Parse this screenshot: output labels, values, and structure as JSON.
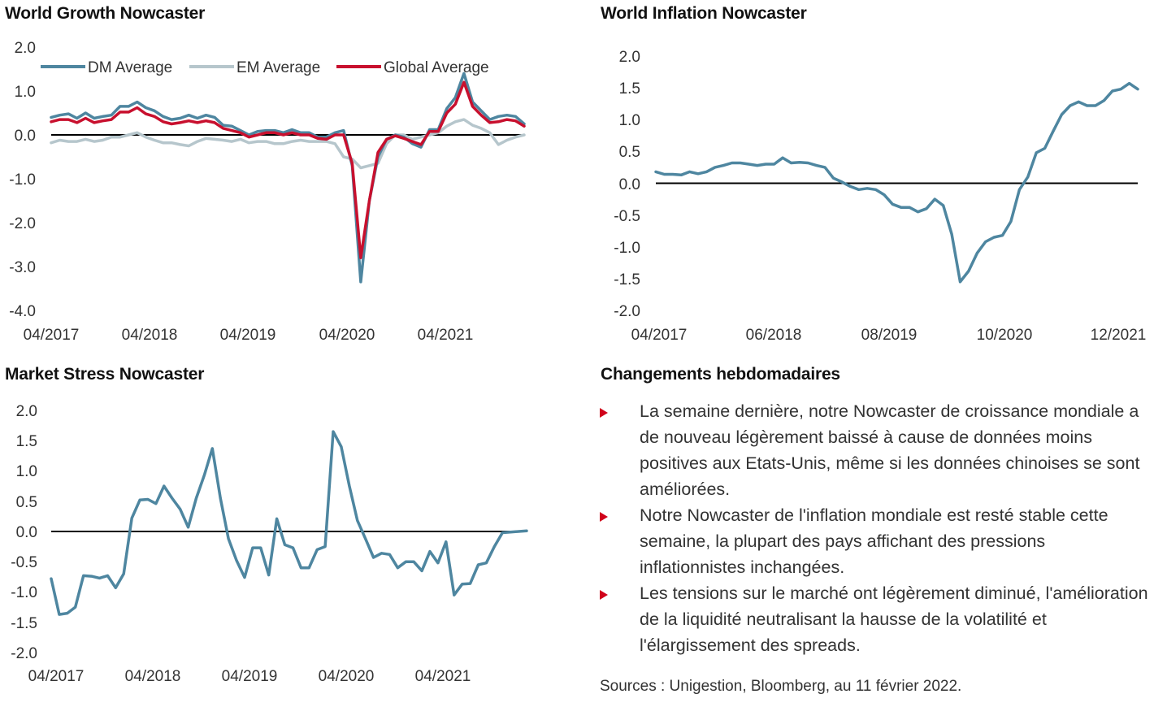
{
  "panels": {
    "growth_title": "World Growth Nowcaster",
    "inflation_title": "World Inflation Nowcaster",
    "stress_title": "Market Stress Nowcaster",
    "weekly_title": "Changements hebdomadaires"
  },
  "commentary": {
    "bullets": [
      "La semaine dernière, notre Nowcaster de croissance mondiale a de nouveau légèrement baissé à cause de données moins positives aux Etats-Unis, même si les données chinoises se sont améliorées.",
      "Notre Nowcaster de l'inflation mondiale est resté stable cette semaine, la plupart des pays affichant des pressions inflationnistes inchangées.",
      "Les tensions sur le marché ont légèrement diminué, l'amélioration de la liquidité neutralisant la hausse de la volatilité et l'élargissement des spreads."
    ],
    "sources": "Sources : Unigestion, Bloomberg, au 11 février 2022."
  },
  "colors": {
    "dm": "#4e86a0",
    "em": "#b6c6cc",
    "global": "#c8102e",
    "bullet": "#d0021b",
    "zero_line": "#000000"
  },
  "chart_data": [
    {
      "type": "line",
      "title": "World Growth Nowcaster",
      "x_start": "2017-04",
      "x_end": "2022-01",
      "xticks": [
        "04/2017",
        "04/2018",
        "04/2019",
        "04/2020",
        "04/2021"
      ],
      "yticks": [
        "2.0",
        "1.0",
        "0.0",
        "-1.0",
        "-2.0",
        "-3.0",
        "-4.0"
      ],
      "ylim": [
        -4,
        2
      ],
      "legend": "top",
      "series": [
        {
          "name": "DM Average",
          "color": "#4e86a0",
          "values": [
            0.4,
            0.45,
            0.48,
            0.38,
            0.5,
            0.38,
            0.42,
            0.45,
            0.65,
            0.65,
            0.75,
            0.62,
            0.55,
            0.42,
            0.35,
            0.38,
            0.45,
            0.38,
            0.45,
            0.4,
            0.22,
            0.2,
            0.1,
            0.0,
            0.08,
            0.1,
            0.1,
            0.05,
            0.12,
            0.05,
            0.05,
            -0.05,
            -0.05,
            0.05,
            0.1,
            -0.7,
            -3.35,
            -1.5,
            -0.5,
            -0.1,
            0.0,
            -0.05,
            -0.2,
            -0.28,
            0.12,
            0.12,
            0.6,
            0.85,
            1.4,
            0.75,
            0.55,
            0.35,
            0.42,
            0.45,
            0.42,
            0.25
          ]
        },
        {
          "name": "EM Average",
          "color": "#b6c6cc",
          "values": [
            -0.18,
            -0.12,
            -0.15,
            -0.15,
            -0.1,
            -0.15,
            -0.12,
            -0.05,
            -0.05,
            0.0,
            0.05,
            -0.05,
            -0.12,
            -0.18,
            -0.18,
            -0.22,
            -0.25,
            -0.15,
            -0.08,
            -0.1,
            -0.12,
            -0.15,
            -0.1,
            -0.18,
            -0.15,
            -0.15,
            -0.2,
            -0.2,
            -0.15,
            -0.12,
            -0.15,
            -0.15,
            -0.15,
            -0.2,
            -0.5,
            -0.55,
            -0.75,
            -0.7,
            -0.65,
            -0.2,
            0.0,
            0.0,
            -0.1,
            -0.05,
            0.0,
            0.05,
            0.2,
            0.3,
            0.35,
            0.22,
            0.15,
            0.05,
            -0.22,
            -0.12,
            -0.05,
            0.0
          ]
        },
        {
          "name": "Global Average",
          "color": "#c8102e",
          "values": [
            0.3,
            0.35,
            0.35,
            0.28,
            0.38,
            0.28,
            0.32,
            0.35,
            0.52,
            0.52,
            0.62,
            0.48,
            0.42,
            0.3,
            0.25,
            0.28,
            0.32,
            0.28,
            0.32,
            0.28,
            0.15,
            0.1,
            0.05,
            -0.05,
            0.0,
            0.05,
            0.05,
            0.0,
            0.05,
            0.0,
            0.0,
            -0.08,
            -0.1,
            0.0,
            0.0,
            -0.65,
            -2.8,
            -1.5,
            -0.4,
            -0.1,
            -0.02,
            -0.08,
            -0.15,
            -0.22,
            0.08,
            0.08,
            0.5,
            0.7,
            1.2,
            0.65,
            0.45,
            0.28,
            0.3,
            0.35,
            0.32,
            0.2
          ]
        }
      ]
    },
    {
      "type": "line",
      "title": "World Inflation Nowcaster",
      "x_start": "2017-04",
      "x_end": "2021-12",
      "xticks": [
        "04/2017",
        "06/2018",
        "08/2019",
        "10/2020",
        "12/2021"
      ],
      "yticks": [
        "2.0",
        "1.5",
        "1.0",
        "0.5",
        "0.0",
        "-0.5",
        "-1.0",
        "-1.5",
        "-2.0"
      ],
      "ylim": [
        -2,
        2
      ],
      "series": [
        {
          "color": "#4e86a0",
          "values": [
            0.18,
            0.14,
            0.14,
            0.13,
            0.18,
            0.15,
            0.18,
            0.25,
            0.28,
            0.32,
            0.32,
            0.3,
            0.28,
            0.3,
            0.3,
            0.4,
            0.32,
            0.33,
            0.32,
            0.28,
            0.25,
            0.08,
            0.02,
            -0.05,
            -0.1,
            -0.08,
            -0.1,
            -0.18,
            -0.33,
            -0.38,
            -0.38,
            -0.45,
            -0.4,
            -0.25,
            -0.35,
            -0.8,
            -1.55,
            -1.38,
            -1.1,
            -0.92,
            -0.85,
            -0.82,
            -0.6,
            -0.1,
            0.1,
            0.48,
            0.55,
            0.82,
            1.08,
            1.22,
            1.28,
            1.22,
            1.22,
            1.3,
            1.45,
            1.48,
            1.57,
            1.48
          ]
        }
      ]
    },
    {
      "type": "line",
      "title": "Market Stress Nowcaster",
      "x_start": "2017-04",
      "x_end": "2022-01",
      "xticks": [
        "04/2017",
        "04/2018",
        "04/2019",
        "04/2020",
        "04/2021"
      ],
      "yticks": [
        "2.0",
        "1.5",
        "1.0",
        "0.5",
        "0.0",
        "-0.5",
        "-1.0",
        "-1.5",
        "-2.0"
      ],
      "ylim": [
        -2,
        2
      ],
      "series": [
        {
          "color": "#4e86a0",
          "values": [
            -0.78,
            -1.37,
            -1.35,
            -1.25,
            -0.73,
            -0.74,
            -0.77,
            -0.73,
            -0.93,
            -0.7,
            0.22,
            0.52,
            0.53,
            0.46,
            0.75,
            0.55,
            0.37,
            0.07,
            0.55,
            0.93,
            1.37,
            0.55,
            -0.12,
            -0.48,
            -0.76,
            -0.27,
            -0.27,
            -0.72,
            0.21,
            -0.22,
            -0.27,
            -0.6,
            -0.6,
            -0.3,
            -0.25,
            1.65,
            1.4,
            0.75,
            0.18,
            -0.12,
            -0.43,
            -0.36,
            -0.38,
            -0.6,
            -0.5,
            -0.5,
            -0.65,
            -0.33,
            -0.52,
            -0.17,
            -1.05,
            -0.87,
            -0.86,
            -0.55,
            -0.52,
            -0.25,
            -0.02,
            -0.01,
            0.0,
            0.01
          ]
        }
      ]
    }
  ]
}
